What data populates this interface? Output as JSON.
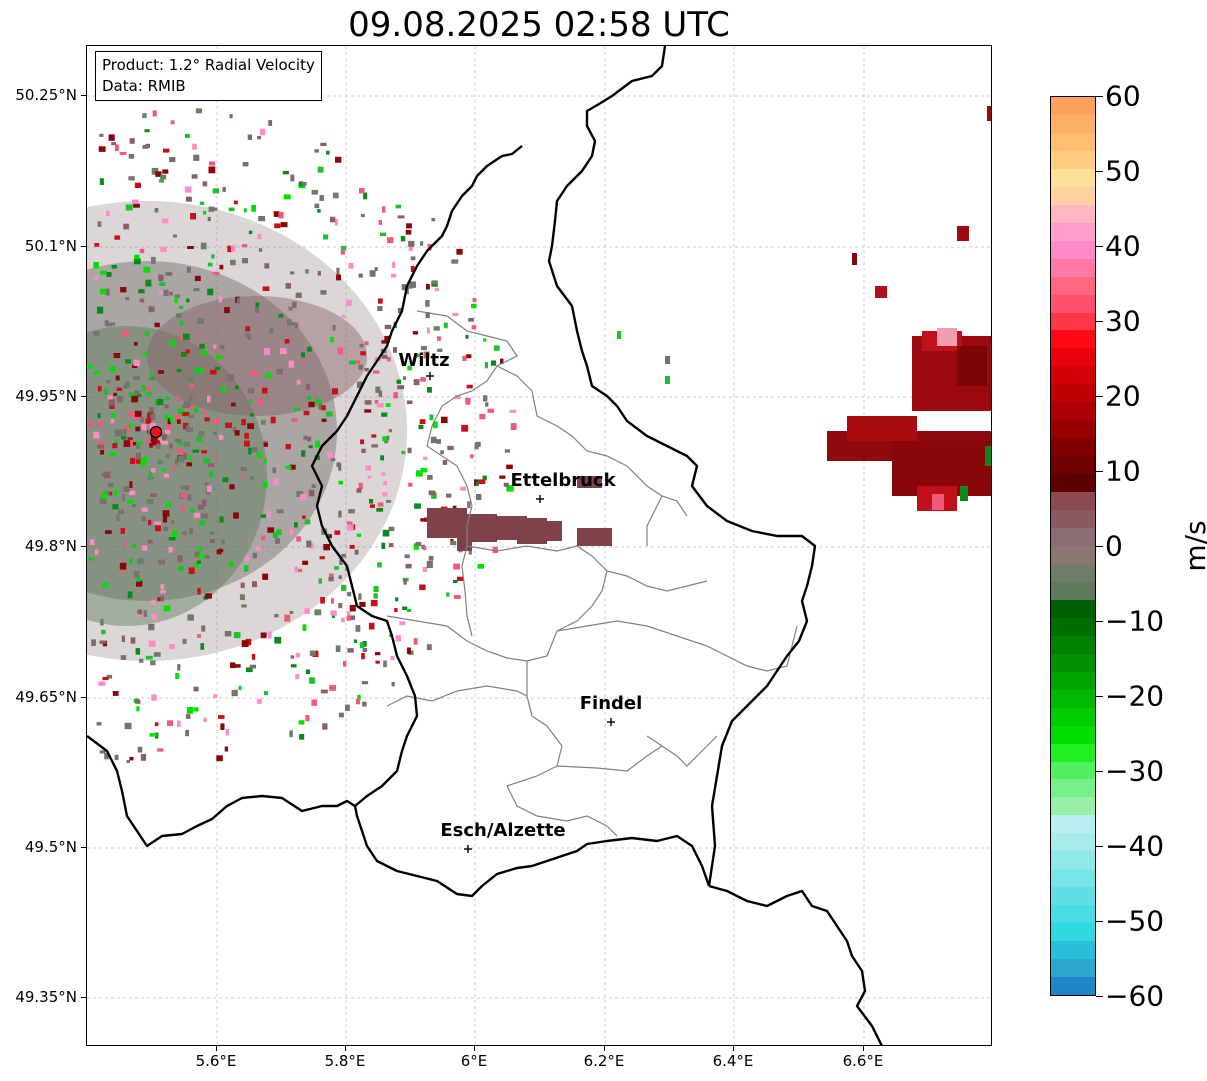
{
  "title": "09.08.2025 02:58 UTC",
  "info": {
    "product": "Product: 1.2° Radial Velocity",
    "data": "Data: RMIB"
  },
  "axes": {
    "lat_ticks": [
      "50.25°N",
      "50.1°N",
      "49.95°N",
      "49.8°N",
      "49.65°N",
      "49.5°N",
      "49.35°N"
    ],
    "lon_ticks": [
      "5.6°E",
      "5.8°E",
      "6°E",
      "6.2°E",
      "6.4°E",
      "6.6°E"
    ]
  },
  "cities": [
    {
      "name": "Wiltz"
    },
    {
      "name": "Ettelbruck"
    },
    {
      "name": "Findel"
    },
    {
      "name": "Esch/Alzette"
    }
  ],
  "colorbar": {
    "unit": "m/s",
    "ticks": [
      "60",
      "50",
      "40",
      "30",
      "20",
      "10",
      "0",
      "−10",
      "−20",
      "−30",
      "−40",
      "−50",
      "−60"
    ],
    "range": [
      -60,
      60
    ]
  },
  "colors": {
    "radar_site": "#e8141c",
    "border": "#000000",
    "canton": "#808080",
    "grid": "#bdbdbd"
  }
}
